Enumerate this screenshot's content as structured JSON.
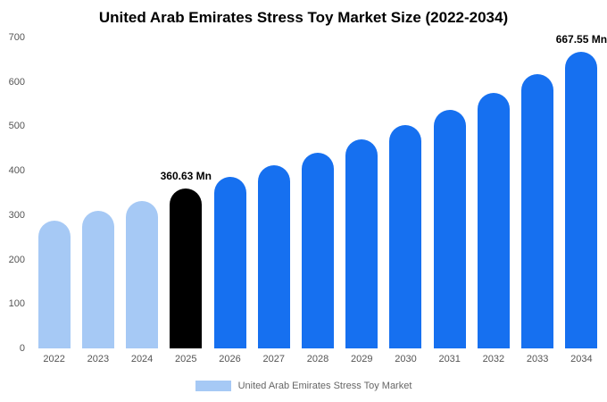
{
  "chart_data": {
    "type": "bar",
    "title": "United Arab Emirates Stress Toy Market Size (2022-2034)",
    "categories": [
      "2022",
      "2023",
      "2024",
      "2025",
      "2026",
      "2027",
      "2028",
      "2029",
      "2030",
      "2031",
      "2032",
      "2033",
      "2034"
    ],
    "values": [
      288,
      310,
      332,
      360.63,
      386,
      412,
      440,
      470,
      502,
      538,
      576,
      617,
      667.55
    ],
    "bar_colors": [
      "light",
      "light",
      "light",
      "black",
      "blue",
      "blue",
      "blue",
      "blue",
      "blue",
      "blue",
      "blue",
      "blue",
      "blue"
    ],
    "annotations": [
      {
        "index": 3,
        "text": "360.63 Mn"
      },
      {
        "index": 12,
        "text": "667.55 Mn"
      }
    ],
    "xlabel": "",
    "ylabel": "",
    "ylim": [
      0,
      700
    ],
    "yticks": [
      0,
      100,
      200,
      300,
      400,
      500,
      600,
      700
    ],
    "grid": false,
    "legend": {
      "label": "United Arab Emirates Stress Toy Market",
      "swatch_color": "#a6c9f5",
      "position": "bottom"
    },
    "colors": {
      "light": "#a6c9f5",
      "blue": "#1670f0",
      "black": "#000000"
    }
  }
}
